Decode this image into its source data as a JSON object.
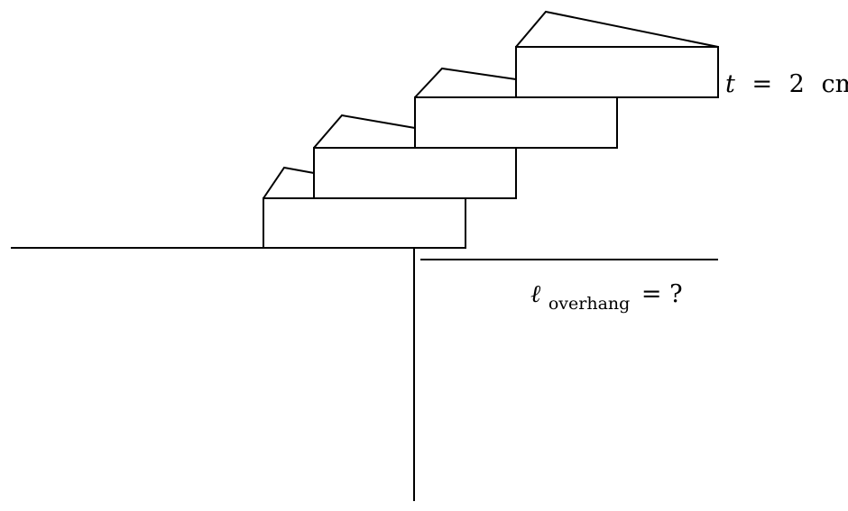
{
  "thickness_label": {
    "variable": "t",
    "equals": "=",
    "value": "2",
    "unit": "cm"
  },
  "overhang_label": {
    "symbol": "ℓ",
    "subscript": "overhang",
    "equals": "=",
    "value": "?"
  },
  "colors": {
    "stroke": "#000000",
    "background": "#ffffff"
  }
}
